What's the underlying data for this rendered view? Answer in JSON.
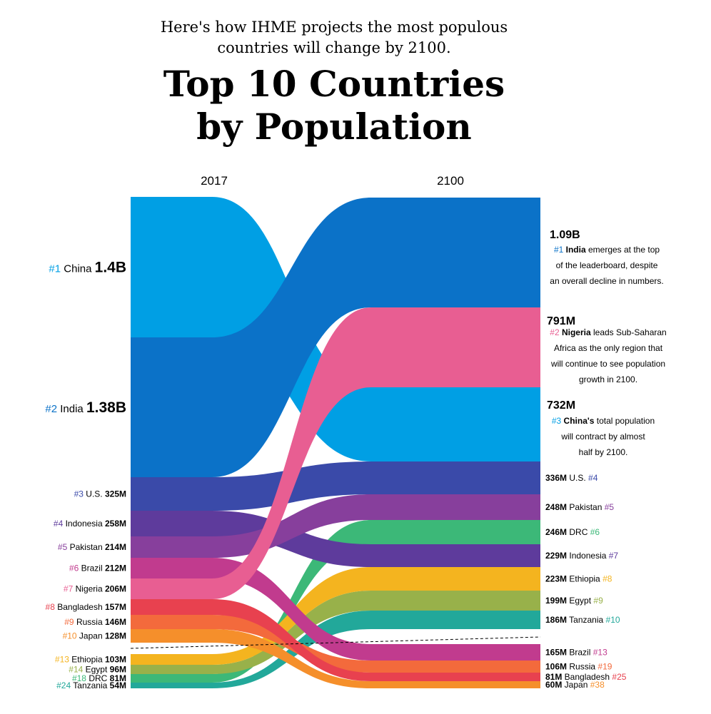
{
  "header": {
    "subtitle_line1": "Here's how IHME projects the most populous",
    "subtitle_line2": "countries will change by 2100.",
    "title_line1": "Top 10 Countries",
    "title_line2": "by Population"
  },
  "chart_data": {
    "type": "sankey",
    "columns": [
      "2017",
      "2100"
    ],
    "flows": [
      {
        "country": "China",
        "color": "#009fe4",
        "rank2017": "#1",
        "val2017": "1.4B",
        "rank2100": "#3",
        "val2100": "732M"
      },
      {
        "country": "India",
        "color": "#0b72c8",
        "rank2017": "#2",
        "val2017": "1.38B",
        "rank2100": "#1",
        "val2100": "1.09B"
      },
      {
        "country": "U.S.",
        "color": "#3a4aa9",
        "rank2017": "#3",
        "val2017": "325M",
        "rank2100": "#4",
        "val2100": "336M"
      },
      {
        "country": "Indonesia",
        "color": "#5e3b9c",
        "rank2017": "#4",
        "val2017": "258M",
        "rank2100": "#7",
        "val2100": "229M"
      },
      {
        "country": "Pakistan",
        "color": "#873f9c",
        "rank2017": "#5",
        "val2017": "214M",
        "rank2100": "#5",
        "val2100": "248M"
      },
      {
        "country": "Brazil",
        "color": "#c13b8e",
        "rank2017": "#6",
        "val2017": "212M",
        "rank2100": "#13",
        "val2100": "165M"
      },
      {
        "country": "Nigeria",
        "color": "#e85e92",
        "rank2017": "#7",
        "val2017": "206M",
        "rank2100": "#2",
        "val2100": "791M"
      },
      {
        "country": "Bangladesh",
        "color": "#e8414f",
        "rank2017": "#8",
        "val2017": "157M",
        "rank2100": "#25",
        "val2100": "81M"
      },
      {
        "country": "Russia",
        "color": "#f36a3c",
        "rank2017": "#9",
        "val2017": "146M",
        "rank2100": "#19",
        "val2100": "106M"
      },
      {
        "country": "Japan",
        "color": "#f58f2b",
        "rank2017": "#10",
        "val2017": "128M",
        "rank2100": "#38",
        "val2100": "60M"
      },
      {
        "country": "Ethiopia",
        "color": "#f4b41f",
        "rank2017": "#13",
        "val2017": "103M",
        "rank2100": "#8",
        "val2100": "223M"
      },
      {
        "country": "Egypt",
        "color": "#98b14a",
        "rank2017": "#14",
        "val2017": "96M",
        "rank2100": "#9",
        "val2100": "199M"
      },
      {
        "country": "DRC",
        "color": "#3cb878",
        "rank2017": "#18",
        "val2017": "81M",
        "rank2100": "#6",
        "val2100": "246M"
      },
      {
        "country": "Tanzania",
        "color": "#22a89a",
        "rank2017": "#24",
        "val2017": "54M",
        "rank2100": "#10",
        "val2100": "186M"
      }
    ],
    "annotations": {
      "india": {
        "bold": "India",
        "lines": [
          "emerges at the top",
          "of the leaderboard, despite",
          "an overall decline in numbers."
        ]
      },
      "nigeria": {
        "bold": "Nigeria",
        "lines": [
          "leads Sub-Saharan",
          "Africa as the only region that",
          "will continue to see population",
          "growth in 2100."
        ]
      },
      "china": {
        "bold": "China's",
        "lines": [
          "total population",
          "will contract by almost",
          "half by 2100."
        ]
      }
    }
  }
}
